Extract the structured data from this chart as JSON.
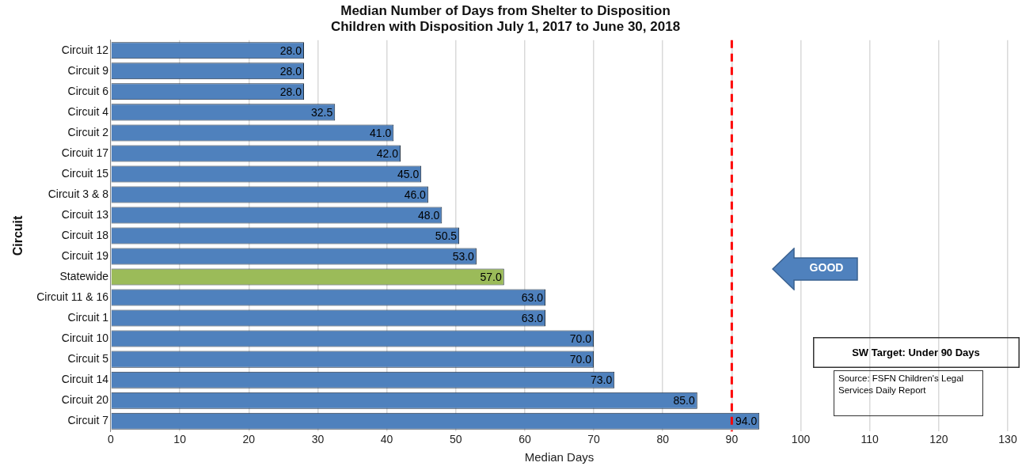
{
  "chart_data": {
    "type": "bar",
    "orientation": "horizontal",
    "title": "Median Number of Days from Shelter to Disposition",
    "subtitle": "Children with Disposition July 1, 2017 to June 30, 2018",
    "xlabel": "Median Days",
    "ylabel": "Circuit",
    "categories": [
      "Circuit 12",
      "Circuit 9",
      "Circuit 6",
      "Circuit 4",
      "Circuit 2",
      "Circuit 17",
      "Circuit 15",
      "Circuit 3 & 8",
      "Circuit 13",
      "Circuit 18",
      "Circuit 19",
      "Statewide",
      "Circuit 11 & 16",
      "Circuit 1",
      "Circuit 10",
      "Circuit 5",
      "Circuit 14",
      "Circuit 20",
      "Circuit 7"
    ],
    "values": [
      28,
      28,
      28,
      32.5,
      41,
      42,
      45,
      46,
      48,
      50.5,
      53,
      57,
      63,
      63,
      70,
      70,
      73,
      85,
      94
    ],
    "value_labels": [
      "28.0",
      "28.0",
      "28.0",
      "32.5",
      "41.0",
      "42.0",
      "45.0",
      "46.0",
      "48.0",
      "50.5",
      "53.0",
      "57.0",
      "63.0",
      "63.0",
      "70.0",
      "70.0",
      "73.0",
      "85.0",
      "94.0"
    ],
    "colors": [
      "#4f81bd",
      "#4f81bd",
      "#4f81bd",
      "#4f81bd",
      "#4f81bd",
      "#4f81bd",
      "#4f81bd",
      "#4f81bd",
      "#4f81bd",
      "#4f81bd",
      "#4f81bd",
      "#9bbb59",
      "#4f81bd",
      "#4f81bd",
      "#4f81bd",
      "#4f81bd",
      "#4f81bd",
      "#4f81bd",
      "#4f81bd"
    ],
    "xlim": [
      0,
      130
    ],
    "xticks": [
      0,
      10,
      20,
      30,
      40,
      50,
      60,
      70,
      80,
      90,
      100,
      110,
      120,
      130
    ],
    "grid": "x",
    "ref_lines": [
      {
        "axis": "x",
        "value": 90,
        "color": "#ff0000",
        "line_style": "dashed"
      }
    ],
    "annotations": [
      "GOOD",
      "SW Target: Under 90 Days",
      "Source: FSFN Children's Legal Services Daily Report"
    ]
  }
}
